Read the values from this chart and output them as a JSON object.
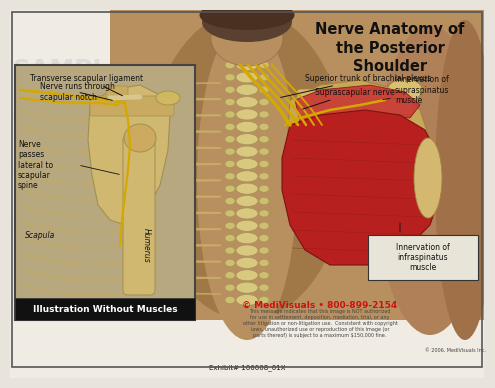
{
  "title": "Nerve Anatomy of\nthe Posterior\nShoulder",
  "bg_color": "#e8e4dc",
  "main_bg": "#c8b898",
  "watermark_color": "#cccccc",
  "labels": {
    "transverse_scapular_ligament": "Transverse scapular ligament",
    "nerve_runs": "Nerve runs through\nscapular notch",
    "nerve_passes": "Nerve\npasses\nlateral to\nscapular\nspine",
    "scapula": "Scapula",
    "humerus": "Humerus",
    "superior_trunk": "Superior trunk of brachial plexus",
    "suprascapular_nerve": "Suprascapular nerve",
    "innervation_supra": "Innervation of\nsupraspinatus\nmuscle",
    "innervation_infra": "Innervation of\ninfraspinatus\nmuscle",
    "illustration_box": "Illustration Without Muscles"
  },
  "exhibit_text": "Exhibit# 106008_01X",
  "copyright_text": "© MediVisuals • 800-899-2154",
  "disclaimer_text": "This message indicates that this image is NOT authorized\nfor use in settlement, deposition, mediation, trial, or any\nother litigation or non-litigation use.  Consistent with copyright\nlaws, unauthorized use or reproduction of this image (or\nparts thereof) is subject to a maximum $150,000 fine.",
  "medivisuals_credit": "© 2006, MediVisuals Inc.",
  "nerve_color": "#d4a800",
  "muscle_red": "#b82020",
  "muscle_red2": "#cc3333",
  "bone_color": "#c8b070",
  "bone_light": "#d8c880",
  "skin_color": "#b89060",
  "skin_light": "#c8a870",
  "spine_color": "#c0a860",
  "rib_color": "#c8b068",
  "left_box_bg": "#b8a880",
  "left_box_border": "#444444",
  "illus_bar_bg": "#111111",
  "illus_bar_text": "#ffffff",
  "infra_box_bg": "#e8e4d8",
  "infra_box_border": "#333333",
  "title_fontsize": 10.5,
  "label_fontsize": 5.5,
  "small_fontsize": 4.5
}
